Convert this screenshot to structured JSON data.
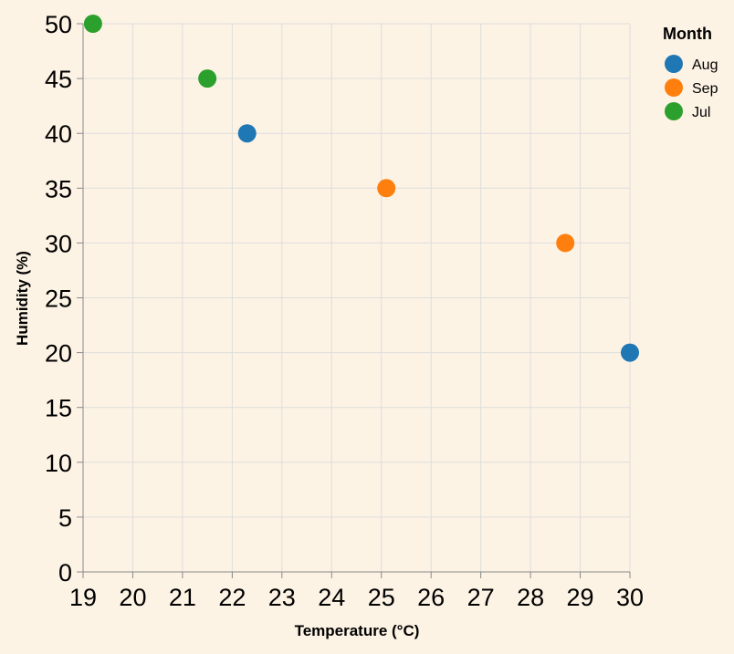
{
  "chart_data": {
    "type": "scatter",
    "xlabel": "Temperature (°C)",
    "ylabel": "Humidity (%)",
    "xlim": [
      19,
      30
    ],
    "ylim": [
      0,
      50
    ],
    "xticks": [
      19,
      20,
      21,
      22,
      23,
      24,
      25,
      26,
      27,
      28,
      29,
      30
    ],
    "yticks": [
      0,
      5,
      10,
      15,
      20,
      25,
      30,
      35,
      40,
      45,
      50
    ],
    "grid": true,
    "legend": {
      "title": "Month",
      "position": "top-right",
      "entries": [
        {
          "name": "Aug",
          "color": "#1f77b4"
        },
        {
          "name": "Sep",
          "color": "#ff7f0e"
        },
        {
          "name": "Jul",
          "color": "#2ca02c"
        }
      ]
    },
    "series": [
      {
        "name": "Aug",
        "color": "#1f77b4",
        "points": [
          {
            "x": 22.3,
            "y": 40
          },
          {
            "x": 30.0,
            "y": 20
          }
        ]
      },
      {
        "name": "Sep",
        "color": "#ff7f0e",
        "points": [
          {
            "x": 25.1,
            "y": 35
          },
          {
            "x": 28.7,
            "y": 30
          }
        ]
      },
      {
        "name": "Jul",
        "color": "#2ca02c",
        "points": [
          {
            "x": 19.2,
            "y": 50
          },
          {
            "x": 21.5,
            "y": 45
          }
        ]
      }
    ]
  }
}
